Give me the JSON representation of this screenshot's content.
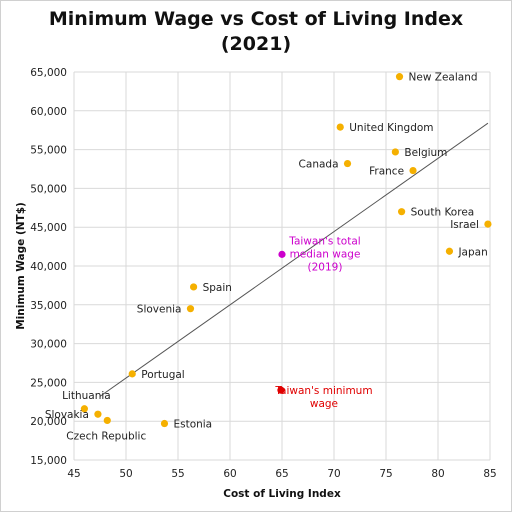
{
  "chart_data": {
    "type": "scatter",
    "title_lines": [
      "Minimum Wage vs Cost of Living Index",
      "(2021)"
    ],
    "xlabel": "Cost of Living Index",
    "ylabel": "Minimum Wage (NT$)",
    "xlim": [
      45,
      85
    ],
    "ylim": [
      15000,
      65000
    ],
    "x_ticks": [
      45,
      50,
      55,
      60,
      65,
      70,
      75,
      80,
      85
    ],
    "y_ticks": [
      15000,
      20000,
      25000,
      30000,
      35000,
      40000,
      45000,
      50000,
      55000,
      60000,
      65000
    ],
    "y_tick_labels": [
      "15,000",
      "20,000",
      "25,000",
      "30,000",
      "35,000",
      "40,000",
      "45,000",
      "50,000",
      "55,000",
      "60,000",
      "65,000"
    ],
    "grid": true,
    "colors": {
      "country": "#F5B000",
      "median": "#CC00CC",
      "minimum": "#E00000",
      "trendline": "#555555",
      "grid": "#d9d9d9"
    },
    "points": [
      {
        "label": "New Zealand",
        "x": 76.3,
        "y": 64400,
        "color": "#F5B000",
        "label_pos": "right"
      },
      {
        "label": "United Kingdom",
        "x": 70.6,
        "y": 57900,
        "color": "#F5B000",
        "label_pos": "right"
      },
      {
        "label": "Belgium",
        "x": 75.9,
        "y": 54700,
        "color": "#F5B000",
        "label_pos": "right"
      },
      {
        "label": "Canada",
        "x": 71.3,
        "y": 53200,
        "color": "#F5B000",
        "label_pos": "left"
      },
      {
        "label": "France",
        "x": 77.6,
        "y": 52300,
        "color": "#F5B000",
        "label_pos": "left"
      },
      {
        "label": "South Korea",
        "x": 76.5,
        "y": 47000,
        "color": "#F5B000",
        "label_pos": "right"
      },
      {
        "label": "Israel",
        "x": 84.8,
        "y": 45400,
        "color": "#F5B000",
        "label_pos": "left"
      },
      {
        "label": "Japan",
        "x": 81.1,
        "y": 41900,
        "color": "#F5B000",
        "label_pos": "right"
      },
      {
        "label": "Spain",
        "x": 56.5,
        "y": 37300,
        "color": "#F5B000",
        "label_pos": "right"
      },
      {
        "label": "Slovenia",
        "x": 56.2,
        "y": 34500,
        "color": "#F5B000",
        "label_pos": "left"
      },
      {
        "label": "Portugal",
        "x": 50.6,
        "y": 26100,
        "color": "#F5B000",
        "label_pos": "right"
      },
      {
        "label": "Lithuania",
        "x": 46.0,
        "y": 21600,
        "color": "#F5B000",
        "label_pos": "above"
      },
      {
        "label": "Slovakia",
        "x": 47.3,
        "y": 20900,
        "color": "#F5B000",
        "label_pos": "left"
      },
      {
        "label": "Czech Republic",
        "x": 48.2,
        "y": 20100,
        "color": "#F5B000",
        "label_pos": "below"
      },
      {
        "label": "Estonia",
        "x": 53.7,
        "y": 19700,
        "color": "#F5B000",
        "label_pos": "right"
      },
      {
        "label": "Taiwan's total median wage (2019)",
        "x": 65.0,
        "y": 41500,
        "color": "#CC00CC",
        "label_pos": "multiline",
        "label_lines": [
          "Taiwan's total",
          "median wage",
          "(2019)"
        ]
      },
      {
        "label": "Taiwan's minimum wage",
        "x": 64.9,
        "y": 24000,
        "color": "#E00000",
        "label_pos": "multiline",
        "label_lines": [
          "Taiwan's minimum",
          "wage"
        ]
      }
    ],
    "trendline": {
      "x": [
        47.5,
        84.8
      ],
      "y": [
        23200,
        58400
      ]
    }
  }
}
